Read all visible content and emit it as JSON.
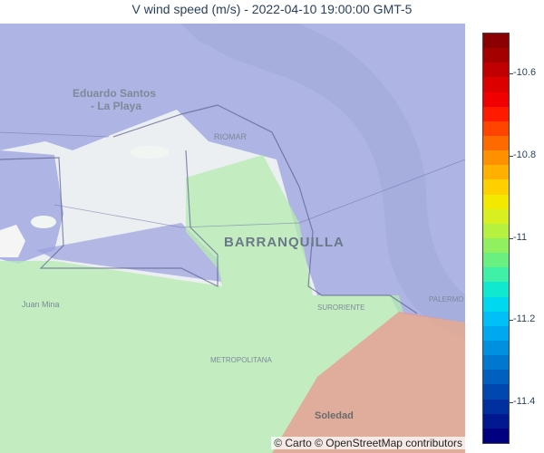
{
  "title": "V wind speed (m/s) - 2022-04-10 19:00:00 GMT-5",
  "map": {
    "labels": {
      "eduardo_santos": "Eduardo Santos",
      "la_playa": "- La Playa",
      "riomar": "RIOMAR",
      "barranquilla": "BARRANQUILLA",
      "juan_mina": "Juan Mina",
      "suroriente": "SURORIENTE",
      "metropolitana": "METROPOLITANA",
      "soledad": "Soledad",
      "palermo": "PALERMO"
    },
    "attribution": "© Carto © OpenStreetMap contributors",
    "regions": [
      {
        "name": "north",
        "v_wind_ms": -11.15,
        "color": "#8b8fd0"
      },
      {
        "name": "center",
        "v_wind_ms": -11.0,
        "color": "#b5f0b0"
      },
      {
        "name": "southeast",
        "v_wind_ms": -10.65,
        "color": "#f07878"
      }
    ]
  },
  "colorbar": {
    "ticks": [
      "-10.6",
      "-10.8",
      "-11",
      "-11.2",
      "-11.4"
    ],
    "colors": [
      "#8b0000",
      "#a50000",
      "#c00000",
      "#dc0000",
      "#f00000",
      "#ff1a00",
      "#ff4400",
      "#ff6a00",
      "#ff9000",
      "#ffb000",
      "#ffd000",
      "#f2e800",
      "#d8f020",
      "#b6f040",
      "#90f060",
      "#6af080",
      "#40f0a8",
      "#10e8d0",
      "#00d8f0",
      "#00c0f8",
      "#00a8f0",
      "#0090e0",
      "#0078d0",
      "#0060c0",
      "#0048b0",
      "#0030a0",
      "#001890",
      "#000080"
    ]
  }
}
